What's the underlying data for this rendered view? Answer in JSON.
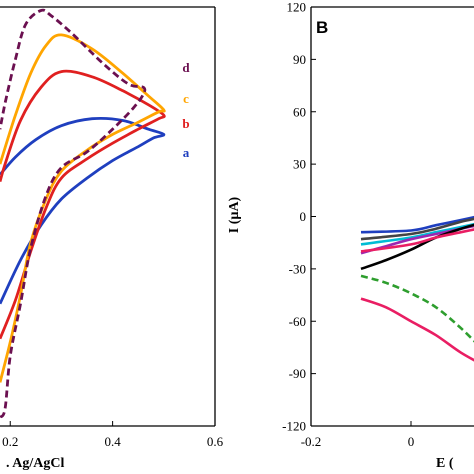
{
  "chart_data": [
    {
      "type": "line",
      "panel_label": "",
      "xlabel": ". Ag/AgCl",
      "ylabel": "",
      "x_ticks": [
        "0.2",
        "0.4",
        "0.6"
      ],
      "xlim": [
        0.18,
        0.6
      ],
      "ylim": [
        -120,
        120
      ],
      "grid": false,
      "legend": "labels at curve ends, right side",
      "series": [
        {
          "name": "a",
          "color": "#1f3fbf",
          "dash": false,
          "points": [
            [
              0.18,
              -50
            ],
            [
              0.22,
              -25
            ],
            [
              0.26,
              -5
            ],
            [
              0.3,
              10
            ],
            [
              0.35,
              22
            ],
            [
              0.4,
              32
            ],
            [
              0.45,
              40
            ],
            [
              0.48,
              45
            ],
            [
              0.5,
              47
            ],
            [
              0.47,
              50
            ],
            [
              0.42,
              55
            ],
            [
              0.36,
              56
            ],
            [
              0.3,
              52
            ],
            [
              0.25,
              44
            ],
            [
              0.21,
              34
            ],
            [
              0.18,
              24
            ]
          ]
        },
        {
          "name": "b",
          "color": "#e02020",
          "dash": false,
          "points": [
            [
              0.18,
              -70
            ],
            [
              0.21,
              -48
            ],
            [
              0.24,
              -20
            ],
            [
              0.27,
              5
            ],
            [
              0.3,
              22
            ],
            [
              0.35,
              33
            ],
            [
              0.4,
              42
            ],
            [
              0.45,
              50
            ],
            [
              0.49,
              56
            ],
            [
              0.5,
              58
            ],
            [
              0.47,
              64
            ],
            [
              0.42,
              72
            ],
            [
              0.36,
              80
            ],
            [
              0.3,
              83
            ],
            [
              0.26,
              74
            ],
            [
              0.22,
              55
            ],
            [
              0.19,
              30
            ],
            [
              0.18,
              20
            ]
          ]
        },
        {
          "name": "c",
          "color": "#ffa500",
          "dash": false,
          "points": [
            [
              0.18,
              -95
            ],
            [
              0.2,
              -72
            ],
            [
              0.22,
              -45
            ],
            [
              0.24,
              -15
            ],
            [
              0.27,
              10
            ],
            [
              0.3,
              26
            ],
            [
              0.35,
              38
            ],
            [
              0.4,
              47
            ],
            [
              0.45,
              54
            ],
            [
              0.49,
              60
            ],
            [
              0.5,
              61
            ],
            [
              0.47,
              69
            ],
            [
              0.42,
              82
            ],
            [
              0.36,
              96
            ],
            [
              0.3,
              104
            ],
            [
              0.27,
              98
            ],
            [
              0.24,
              82
            ],
            [
              0.21,
              58
            ],
            [
              0.18,
              30
            ]
          ]
        },
        {
          "name": "d",
          "color": "#6b1050",
          "dash": true,
          "points": [
            [
              0.18,
              -115
            ],
            [
              0.19,
              -110
            ],
            [
              0.2,
              -80
            ],
            [
              0.22,
              -50
            ],
            [
              0.24,
              -18
            ],
            [
              0.27,
              12
            ],
            [
              0.3,
              28
            ],
            [
              0.35,
              37
            ],
            [
              0.4,
              50
            ],
            [
              0.44,
              62
            ],
            [
              0.46,
              70
            ],
            [
              0.46,
              74
            ],
            [
              0.43,
              76
            ],
            [
              0.38,
              88
            ],
            [
              0.32,
              105
            ],
            [
              0.28,
              115
            ],
            [
              0.26,
              118
            ],
            [
              0.23,
              110
            ],
            [
              0.21,
              90
            ],
            [
              0.19,
              65
            ],
            [
              0.18,
              50
            ]
          ]
        }
      ]
    },
    {
      "type": "line",
      "panel_label": "B",
      "xlabel": "E (",
      "ylabel": "I (µA)",
      "x_ticks": [
        "-0.2",
        "0"
      ],
      "y_ticks": [
        "120",
        "90",
        "60",
        "30",
        "0",
        "-30",
        "-60",
        "-90",
        "-120"
      ],
      "xlim": [
        -0.2,
        0.15
      ],
      "ylim": [
        -120,
        120
      ],
      "grid": false,
      "series": [
        {
          "color": "#1f3fbf",
          "dash": false,
          "points": [
            [
              -0.1,
              -9
            ],
            [
              0.0,
              -8
            ],
            [
              0.05,
              -5
            ],
            [
              0.1,
              -2
            ],
            [
              0.15,
              1
            ]
          ]
        },
        {
          "color": "#444444",
          "dash": false,
          "points": [
            [
              -0.1,
              -13
            ],
            [
              0.0,
              -10
            ],
            [
              0.05,
              -7
            ],
            [
              0.1,
              -3
            ],
            [
              0.15,
              0
            ]
          ]
        },
        {
          "color": "#00bcd4",
          "dash": false,
          "points": [
            [
              -0.1,
              -16
            ],
            [
              0.0,
              -12
            ],
            [
              0.05,
              -9
            ],
            [
              0.1,
              -6
            ],
            [
              0.15,
              -3
            ]
          ]
        },
        {
          "color": "#9c27b0",
          "dash": false,
          "points": [
            [
              -0.1,
              -21
            ],
            [
              -0.05,
              -17
            ],
            [
              0.0,
              -13
            ],
            [
              0.05,
              -10
            ],
            [
              0.1,
              -7
            ],
            [
              0.15,
              -4
            ]
          ]
        },
        {
          "color": "#000000",
          "dash": false,
          "points": [
            [
              -0.1,
              -30
            ],
            [
              -0.05,
              -25
            ],
            [
              0.0,
              -19
            ],
            [
              0.05,
              -12
            ],
            [
              0.1,
              -7
            ],
            [
              0.15,
              -3
            ]
          ]
        },
        {
          "color": "#e91e63",
          "dash": false,
          "points": [
            [
              -0.1,
              -20
            ],
            [
              0.0,
              -16
            ],
            [
              0.05,
              -12
            ],
            [
              0.1,
              -9
            ],
            [
              0.15,
              -6
            ]
          ]
        },
        {
          "color": "#2e9e2e",
          "dash": true,
          "points": [
            [
              -0.1,
              -34
            ],
            [
              -0.05,
              -38
            ],
            [
              0.0,
              -44
            ],
            [
              0.05,
              -52
            ],
            [
              0.1,
              -64
            ],
            [
              0.15,
              -78
            ]
          ]
        },
        {
          "color": "#e91e63",
          "dash": false,
          "points": [
            [
              -0.1,
              -47
            ],
            [
              -0.05,
              -52
            ],
            [
              0.0,
              -60
            ],
            [
              0.05,
              -68
            ],
            [
              0.1,
              -78
            ],
            [
              0.15,
              -86
            ]
          ]
        }
      ]
    }
  ]
}
